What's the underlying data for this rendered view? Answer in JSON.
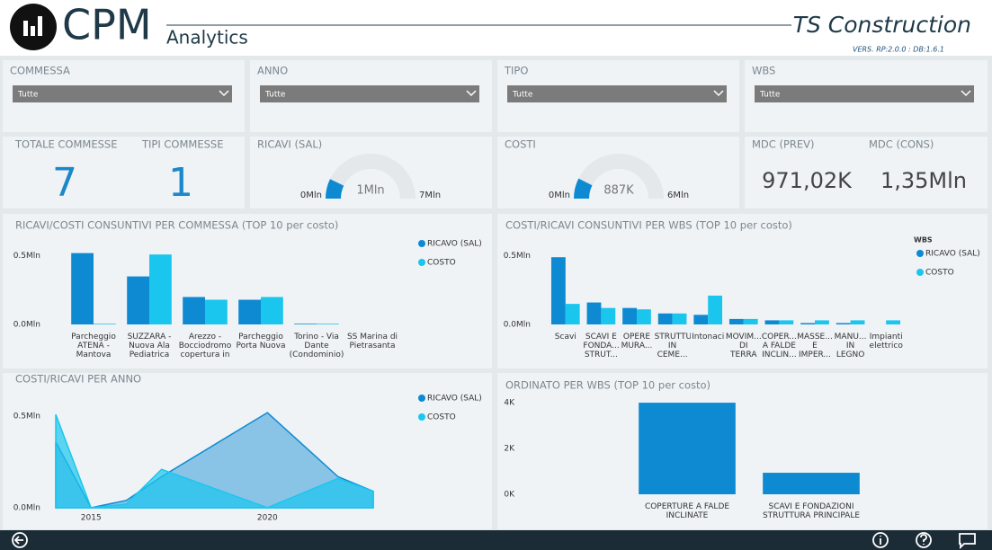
{
  "header": {
    "logo": "CPM",
    "subtitle": "Analytics",
    "company": "TS Construction",
    "version": "VERS. RP:2.0.0 : DB:1.6.1"
  },
  "filters": [
    {
      "label": "COMMESSA",
      "value": "Tutte"
    },
    {
      "label": "ANNO",
      "value": "Tutte"
    },
    {
      "label": "TIPO",
      "value": "Tutte"
    },
    {
      "label": "WBS",
      "value": "Tutte"
    }
  ],
  "kpis": {
    "total": {
      "label": "TOTALE COMMESSE",
      "value": 7
    },
    "types": {
      "label": "TIPI COMMESSE",
      "value": 1
    },
    "mdc_prev": {
      "label": "MDC (PREV)",
      "value": "971,02K"
    },
    "mdc_cons": {
      "label": "MDC (CONS)",
      "value": "1,35Mln"
    }
  },
  "gauges": [
    {
      "title": "RICAVI (SAL)",
      "min": {
        "value": 0,
        "label": "0Mln"
      },
      "value": {
        "value": 1,
        "label": "1Mln"
      },
      "max": {
        "value": 7,
        "label": "7Mln"
      },
      "color": "#0d8ad2"
    },
    {
      "title": "COSTI",
      "min": {
        "value": 0,
        "label": "0Mln"
      },
      "value": {
        "value": 0.887,
        "label": "887K"
      },
      "max": {
        "value": 6,
        "label": "6Mln"
      },
      "color": "#0d8ad2"
    }
  ],
  "chart_data": [
    {
      "type": "bar",
      "title": "RICAVI/COSTI CONSUNTIVI PER COMMESSA (TOP 10 per costo)",
      "categories": [
        "Parcheggio ATENA - Mantova",
        "SUZZARA - Nuova Ala Pediatrica",
        "Arezzo - Bocciodromo copertura in",
        "Parcheggio Porta Nuova",
        "Torino - Via Dante (Condominio)",
        "SS Marina di Pietrasanta"
      ],
      "series": [
        {
          "name": "RICAVO (SAL)",
          "color": "#0d8ad2",
          "values": [
            0.52,
            0.35,
            0.2,
            0.18,
            0.005,
            0
          ]
        },
        {
          "name": "COSTO",
          "color": "#1bc6ee",
          "values": [
            0.005,
            0.51,
            0.18,
            0.2,
            0.005,
            0
          ]
        }
      ],
      "ylim": [
        0,
        0.57
      ],
      "yticks": [
        {
          "value": 0,
          "label": "0.0Mln"
        },
        {
          "value": 0.5,
          "label": "0.5Mln"
        }
      ]
    },
    {
      "type": "bar",
      "title": "COSTI/RICAVI CONSUNTIVI PER WBS (TOP 10 per costo)",
      "legend_title": "WBS",
      "categories": [
        "Scavi",
        "SCAVI E FONDA... STRUT...",
        "OPERE MURA...",
        "STRUTTURE IN CEME...",
        "Intonaci",
        "MOVIM... DI TERRA",
        "COPER... A FALDE INCLIN...",
        "MASSE... E IMPER...",
        "MANU... IN LEGNO",
        "Impianti elettrico"
      ],
      "series": [
        {
          "name": "RICAVO (SAL)",
          "color": "#0d8ad2",
          "values": [
            0.49,
            0.16,
            0.12,
            0.08,
            0.07,
            0.04,
            0.03,
            0.01,
            0.01,
            0
          ]
        },
        {
          "name": "COSTO",
          "color": "#1bc6ee",
          "values": [
            0.15,
            0.12,
            0.11,
            0.08,
            0.21,
            0.04,
            0.03,
            0.03,
            0.03,
            0.03
          ]
        }
      ],
      "ylim": [
        0,
        0.57
      ],
      "yticks": [
        {
          "value": 0,
          "label": "0.0Mln"
        },
        {
          "value": 0.5,
          "label": "0.5Mln"
        }
      ]
    },
    {
      "type": "area",
      "title": "COSTI/RICAVI PER ANNO",
      "x": [
        2014,
        2015,
        2016,
        2017,
        2020,
        2022,
        2023
      ],
      "series": [
        {
          "name": "RICAVO (SAL)",
          "color": "#0d8ad2",
          "values": [
            0.36,
            0,
            0.04,
            0.17,
            0.52,
            0.17,
            0.09
          ]
        },
        {
          "name": "COSTO",
          "color": "#1bc6ee",
          "values": [
            0.51,
            0,
            0.02,
            0.21,
            0,
            0.16,
            0.09
          ]
        }
      ],
      "xlim": [
        2014,
        2023
      ],
      "xticks": [
        2015,
        2020
      ],
      "ylim": [
        0,
        0.56
      ],
      "yticks": [
        {
          "value": 0,
          "label": "0.0Mln"
        },
        {
          "value": 0.5,
          "label": "0.5Mln"
        }
      ]
    },
    {
      "type": "bar",
      "title": "ORDINATO PER WBS (TOP 10 per costo)",
      "categories": [
        "COPERTURE A FALDE INCLINATE",
        "SCAVI E FONDAZIONI STRUTTURA PRINCIPALE"
      ],
      "values": [
        4000,
        940
      ],
      "color": "#0d8ad2",
      "ylim": [
        0,
        4200
      ],
      "yticks": [
        {
          "value": 0,
          "label": "0K"
        },
        {
          "value": 2000,
          "label": "2K"
        },
        {
          "value": 4000,
          "label": "4K"
        }
      ]
    }
  ]
}
